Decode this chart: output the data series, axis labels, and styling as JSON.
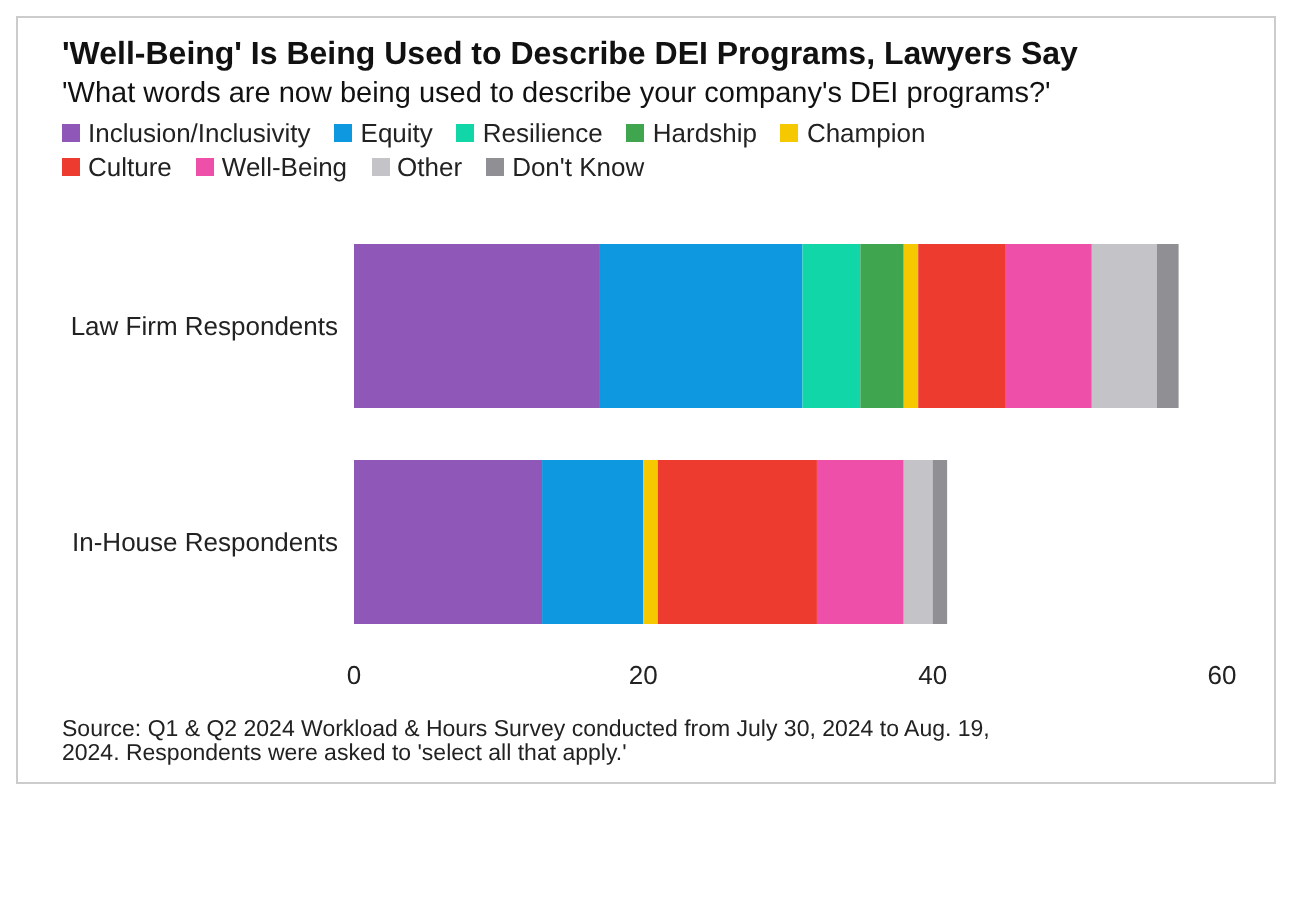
{
  "chart_data": {
    "type": "bar",
    "orientation": "horizontal",
    "stacked": true,
    "title": "'Well-Being' Is Being Used to Describe DEI Programs, Lawyers Say",
    "subtitle": "'What words are now being used to describe your company's DEI programs?'",
    "categories": [
      "Law Firm Respondents",
      "In-House Respondents"
    ],
    "series": [
      {
        "name": "Inclusion/Inclusivity",
        "color": "#8e57b8",
        "values": [
          17,
          13
        ]
      },
      {
        "name": "Equity",
        "color": "#0d98e0",
        "values": [
          14,
          7
        ]
      },
      {
        "name": "Resilience",
        "color": "#10d6a8",
        "values": [
          4,
          0
        ]
      },
      {
        "name": "Hardship",
        "color": "#3fa54f",
        "values": [
          3,
          0
        ]
      },
      {
        "name": "Champion",
        "color": "#f5c800",
        "values": [
          1,
          1
        ]
      },
      {
        "name": "Culture",
        "color": "#ee3b30",
        "values": [
          6,
          11
        ]
      },
      {
        "name": "Well-Being",
        "color": "#ee4fa8",
        "values": [
          6,
          6
        ]
      },
      {
        "name": "Other",
        "color": "#c3c3c8",
        "values": [
          4.5,
          2
        ]
      },
      {
        "name": "Don't Know",
        "color": "#8f8f94",
        "values": [
          1.5,
          1
        ]
      }
    ],
    "xlim": [
      0,
      60
    ],
    "xticks": [
      0,
      20,
      40,
      60
    ],
    "grid": false,
    "legend": "top left",
    "annotations": [
      "Source: Q1 & Q2 2024 Workload & Hours Survey conducted from July 30, 2024 to Aug. 19, 2024. Respondents were asked to 'select all that apply.'"
    ]
  }
}
